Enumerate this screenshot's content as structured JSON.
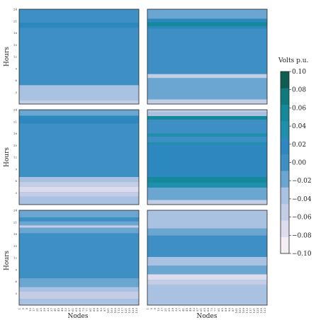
{
  "chart_data": {
    "type": "heatmap",
    "ylabel": "Hours",
    "xlabel": "Nodes",
    "y_ticks": [
      "3",
      "6",
      "9",
      "12",
      "15",
      "18",
      "21",
      "24"
    ],
    "x_ticks": [
      "1",
      "5",
      "9",
      "13",
      "17",
      "21",
      "25",
      "29",
      "33",
      "37",
      "41",
      "45",
      "49",
      "53",
      "57",
      "61",
      "65",
      "69",
      "73",
      "77",
      "81",
      "85",
      "89",
      "93",
      "97",
      "101",
      "105",
      "109",
      "113",
      "117",
      "121",
      "125",
      "129",
      "133"
    ],
    "colorbar": {
      "title": "Volts p.u.",
      "ticks": [
        "0.10",
        "0.08",
        "0.06",
        "0.04",
        "0.02",
        "0.00",
        "−0.02",
        "−0.04",
        "−0.06",
        "−0.08",
        "−0.10"
      ],
      "range": [
        -0.1,
        0.1
      ],
      "colors": [
        "#f5eef5",
        "#dcdcee",
        "#c3cde6",
        "#a9c2e1",
        "#6aa6d0",
        "#3d8fc4",
        "#2e88c0",
        "#1f8fae",
        "#13899a",
        "#117a7c",
        "#0c5e50"
      ]
    },
    "panels": [
      {
        "name": "top-left",
        "bands": [
          {
            "h0": 0,
            "h1": 1.0,
            "v": -0.06
          },
          {
            "h0": 1.0,
            "h1": 4.8,
            "v": -0.04
          },
          {
            "h0": 4.8,
            "h1": 19.3,
            "v": 0.0
          },
          {
            "h0": 19.3,
            "h1": 20.6,
            "v": 0.02
          },
          {
            "h0": 20.6,
            "h1": 24,
            "v": 0.0
          }
        ]
      },
      {
        "name": "top-right",
        "bands": [
          {
            "h0": 0,
            "h1": 1.2,
            "v": -0.06
          },
          {
            "h0": 1.2,
            "h1": 6.6,
            "v": -0.02
          },
          {
            "h0": 6.6,
            "h1": 7.6,
            "v": -0.06
          },
          {
            "h0": 7.6,
            "h1": 19.1,
            "v": 0.0
          },
          {
            "h0": 19.1,
            "h1": 19.7,
            "v": 0.02
          },
          {
            "h0": 19.7,
            "h1": 20.7,
            "v": 0.06
          },
          {
            "h0": 20.7,
            "h1": 21.6,
            "v": 0.02
          },
          {
            "h0": 21.6,
            "h1": 24,
            "v": -0.02
          }
        ]
      },
      {
        "name": "mid-left",
        "bands": [
          {
            "h0": 0,
            "h1": 2.0,
            "v": -0.04
          },
          {
            "h0": 2.0,
            "h1": 3.2,
            "v": -0.06
          },
          {
            "h0": 3.2,
            "h1": 4.6,
            "v": -0.08
          },
          {
            "h0": 4.6,
            "h1": 5.8,
            "v": -0.06
          },
          {
            "h0": 5.8,
            "h1": 7.0,
            "v": -0.04
          },
          {
            "h0": 7.0,
            "h1": 20.5,
            "v": 0.0
          },
          {
            "h0": 20.5,
            "h1": 22.5,
            "v": 0.02
          },
          {
            "h0": 22.5,
            "h1": 24,
            "v": -0.02
          }
        ]
      },
      {
        "name": "mid-right",
        "bands": [
          {
            "h0": 0,
            "h1": 1.2,
            "v": -0.06
          },
          {
            "h0": 1.2,
            "h1": 4.3,
            "v": -0.02
          },
          {
            "h0": 4.3,
            "h1": 5.6,
            "v": 0.04
          },
          {
            "h0": 5.6,
            "h1": 7.0,
            "v": 0.06
          },
          {
            "h0": 7.0,
            "h1": 8.0,
            "v": 0.02
          },
          {
            "h0": 8.0,
            "h1": 15.2,
            "v": 0.02
          },
          {
            "h0": 15.2,
            "h1": 15.8,
            "v": 0.04
          },
          {
            "h0": 15.8,
            "h1": 17.2,
            "v": 0.0
          },
          {
            "h0": 17.2,
            "h1": 18.0,
            "v": 0.04
          },
          {
            "h0": 18.0,
            "h1": 21.5,
            "v": 0.0
          },
          {
            "h0": 21.5,
            "h1": 22.4,
            "v": 0.06
          },
          {
            "h0": 22.4,
            "h1": 23.4,
            "v": -0.04
          },
          {
            "h0": 23.4,
            "h1": 24,
            "v": -0.06
          }
        ]
      },
      {
        "name": "bottom-left",
        "bands": [
          {
            "h0": 0,
            "h1": 1.6,
            "v": -0.04
          },
          {
            "h0": 1.6,
            "h1": 3.4,
            "v": -0.06
          },
          {
            "h0": 3.4,
            "h1": 4.6,
            "v": -0.04
          },
          {
            "h0": 4.6,
            "h1": 6.8,
            "v": -0.02
          },
          {
            "h0": 6.8,
            "h1": 15.4,
            "v": 0.0
          },
          {
            "h0": 15.4,
            "h1": 18.2,
            "v": 0.0
          },
          {
            "h0": 18.2,
            "h1": 19.6,
            "v": -0.02
          },
          {
            "h0": 19.6,
            "h1": 20.2,
            "v": -0.06
          },
          {
            "h0": 20.2,
            "h1": 21.2,
            "v": -0.02
          },
          {
            "h0": 21.2,
            "h1": 22.2,
            "v": 0.0
          },
          {
            "h0": 22.2,
            "h1": 24,
            "v": -0.02
          }
        ]
      },
      {
        "name": "bottom-right",
        "bands": [
          {
            "h0": 0,
            "h1": 5.2,
            "v": -0.04
          },
          {
            "h0": 5.2,
            "h1": 6.4,
            "v": -0.06
          },
          {
            "h0": 6.4,
            "h1": 7.8,
            "v": -0.08
          },
          {
            "h0": 7.8,
            "h1": 10.0,
            "v": -0.02
          },
          {
            "h0": 10.0,
            "h1": 12.2,
            "v": -0.04
          },
          {
            "h0": 12.2,
            "h1": 17.6,
            "v": 0.0
          },
          {
            "h0": 17.6,
            "h1": 19.4,
            "v": -0.02
          },
          {
            "h0": 19.4,
            "h1": 24,
            "v": -0.04
          }
        ]
      }
    ]
  }
}
